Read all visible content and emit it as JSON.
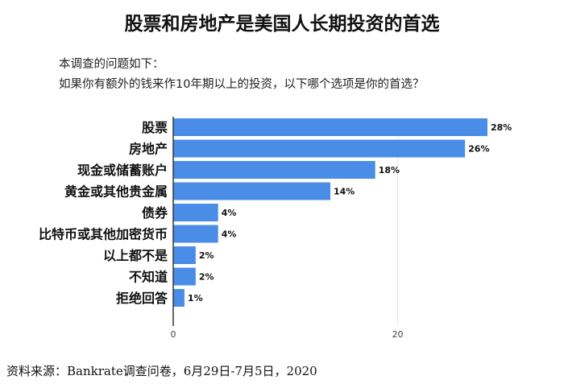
{
  "title": "股票和房地产是美国人长期投资的首选",
  "subtitle_lines": [
    "本调查的问题如下：",
    "如果你有额外的钱来作10年期以上的投资，以下哪个选项是你的首选？"
  ],
  "source": "资料来源：Bankrate调查问卷，6月29日-7月5日，2020",
  "colors": {
    "bar": "#4a8de6",
    "axis": "#333333",
    "grid": "#e6e6e6"
  },
  "chart_data": {
    "type": "bar",
    "orientation": "horizontal",
    "categories": [
      "股票",
      "房地产",
      "现金或储蓄账户",
      "黄金或其他贵金属",
      "债券",
      "比特币或其他加密货币",
      "以上都不是",
      "不知道",
      "拒绝回答"
    ],
    "values": [
      28,
      26,
      18,
      14,
      4,
      4,
      2,
      2,
      1
    ],
    "value_labels": [
      "28%",
      "26%",
      "18%",
      "14%",
      "4%",
      "4%",
      "2%",
      "2%",
      "1%"
    ],
    "xlim": [
      0,
      28
    ],
    "xticks": [
      0,
      20
    ],
    "grid": true,
    "legend": "none"
  }
}
